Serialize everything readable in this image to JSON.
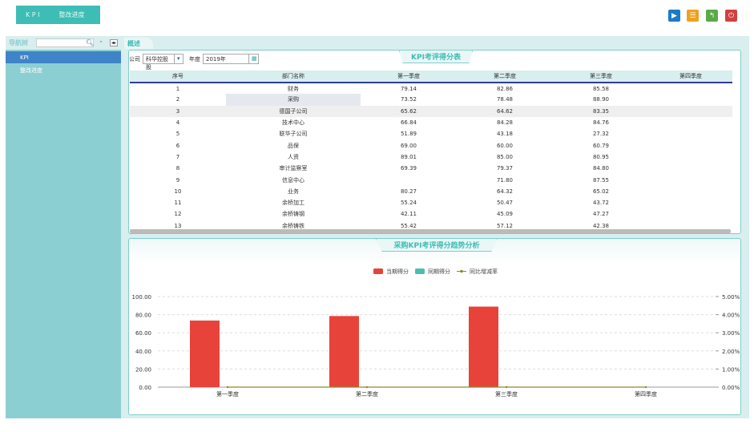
{
  "topnav": {
    "items": [
      "K P I",
      "整改进度"
    ]
  },
  "toolbar": {
    "icons": [
      {
        "name": "play-icon",
        "color": "#1a7bc9"
      },
      {
        "name": "menu-icon",
        "color": "#f0a020"
      },
      {
        "name": "back-icon",
        "color": "#5aaa4a"
      },
      {
        "name": "power-icon",
        "color": "#d04040"
      }
    ]
  },
  "sidebar": {
    "title": "导航树",
    "search_placeholder": "",
    "items": [
      {
        "label": "KPI",
        "selected": true
      },
      {
        "label": "整改进度",
        "selected": false
      }
    ]
  },
  "main": {
    "tab": "概述",
    "filters": {
      "company_label": "公司",
      "company_value": "科华控股股",
      "year_label": "年度",
      "year_value": "2019年"
    }
  },
  "table": {
    "title": "KPI考评得分表",
    "columns": [
      "序号",
      "部门名称",
      "第一季度",
      "第二季度",
      "第三季度",
      "第四季度"
    ],
    "rows": [
      [
        "1",
        "财务",
        "79.14",
        "82.86",
        "85.58",
        ""
      ],
      [
        "2",
        "采购",
        "73.52",
        "78.48",
        "88.90",
        ""
      ],
      [
        "3",
        "德国子公司",
        "65.62",
        "64.62",
        "83.35",
        ""
      ],
      [
        "4",
        "技术中心",
        "66.84",
        "84.28",
        "84.76",
        ""
      ],
      [
        "5",
        "联华子公司",
        "51.89",
        "43.18",
        "27.32",
        ""
      ],
      [
        "6",
        "品保",
        "69.00",
        "60.00",
        "60.79",
        ""
      ],
      [
        "7",
        "人资",
        "89.01",
        "85.00",
        "80.95",
        ""
      ],
      [
        "8",
        "审计监察室",
        "69.39",
        "79.37",
        "84.80",
        ""
      ],
      [
        "9",
        "信息中心",
        "",
        "71.80",
        "87.55",
        ""
      ],
      [
        "10",
        "业务",
        "80.27",
        "64.32",
        "65.02",
        ""
      ],
      [
        "11",
        "余桥加工",
        "55.24",
        "50.47",
        "43.72",
        ""
      ],
      [
        "12",
        "余桥铸钢",
        "42.11",
        "45.09",
        "47.27",
        ""
      ],
      [
        "13",
        "余桥铸铁",
        "55.42",
        "57.12",
        "42.38",
        ""
      ]
    ]
  },
  "chart_data": {
    "type": "bar",
    "title": "采购KPI考评得分趋势分析",
    "categories": [
      "第一季度",
      "第二季度",
      "第三季度",
      "第四季度"
    ],
    "series": [
      {
        "name": "当期得分",
        "type": "bar",
        "color": "#e8433a",
        "values": [
          73.52,
          78.48,
          88.9,
          null
        ]
      },
      {
        "name": "同期得分",
        "type": "bar",
        "color": "#4bbfae",
        "values": [
          null,
          null,
          null,
          null
        ]
      },
      {
        "name": "同比增减率",
        "type": "line",
        "color": "#8a8a2a",
        "values": [
          0,
          0,
          0,
          0
        ]
      }
    ],
    "ylim": [
      0,
      100
    ],
    "yticks": [
      "0.00",
      "20.00",
      "40.00",
      "60.00",
      "80.00",
      "100.00"
    ],
    "y2lim": [
      0,
      5
    ],
    "y2ticks": [
      "0.00%",
      "1.00%",
      "2.00%",
      "3.00%",
      "4.00%",
      "5.00%"
    ],
    "legend": "top-right",
    "grid": true
  }
}
